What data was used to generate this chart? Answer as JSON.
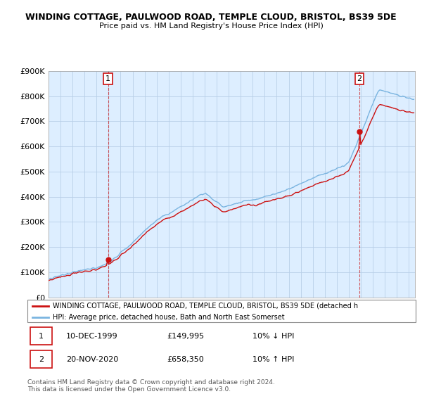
{
  "title_line1": "WINDING COTTAGE, PAULWOOD ROAD, TEMPLE CLOUD, BRISTOL, BS39 5DE",
  "title_line2": "Price paid vs. HM Land Registry's House Price Index (HPI)",
  "ylim": [
    0,
    900000
  ],
  "yticks": [
    0,
    100000,
    200000,
    300000,
    400000,
    500000,
    600000,
    700000,
    800000,
    900000
  ],
  "hpi_color": "#7ab4e0",
  "price_color": "#cc1111",
  "marker1_year": 1999.95,
  "marker1_value": 149995,
  "marker1_label": "1",
  "marker2_year": 2020.88,
  "marker2_value": 658350,
  "marker2_label": "2",
  "legend_line1": "WINDING COTTAGE, PAULWOOD ROAD, TEMPLE CLOUD, BRISTOL, BS39 5DE (detached h",
  "legend_line2": "HPI: Average price, detached house, Bath and North East Somerset",
  "annotation1_date": "10-DEC-1999",
  "annotation1_price": "£149,995",
  "annotation1_hpi": "10% ↓ HPI",
  "annotation2_date": "20-NOV-2020",
  "annotation2_price": "£658,350",
  "annotation2_hpi": "10% ↑ HPI",
  "footer": "Contains HM Land Registry data © Crown copyright and database right 2024.\nThis data is licensed under the Open Government Licence v3.0.",
  "background_color": "#ffffff",
  "chart_bg_color": "#ddeeff",
  "grid_color": "#b8cfe8"
}
